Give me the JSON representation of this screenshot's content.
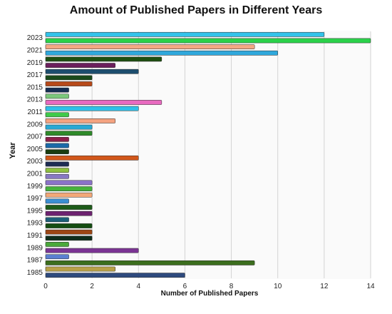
{
  "chart_data": {
    "type": "bar",
    "orientation": "horizontal",
    "title": "Amount of Published Papers in Different Years",
    "xlabel": "Number of Published Papers",
    "ylabel": "Year",
    "xlim": [
      0,
      14
    ],
    "x_ticks": [
      "0",
      "2",
      "4",
      "6",
      "8",
      "10",
      "12",
      "14"
    ],
    "y_tick_labels": [
      "1985",
      "1987",
      "1989",
      "1991",
      "1993",
      "1995",
      "1997",
      "1999",
      "2001",
      "2003",
      "2005",
      "2007",
      "2009",
      "2011",
      "2013",
      "2015",
      "2017",
      "2019",
      "2021",
      "2023"
    ],
    "grid": true,
    "legend": "none",
    "bars": [
      {
        "value": 6,
        "color": "#2e4a7e"
      },
      {
        "value": 3,
        "color": "#b8a048"
      },
      {
        "value": 9,
        "color": "#3c6e1e"
      },
      {
        "value": 1,
        "color": "#5b7fd1"
      },
      {
        "value": 4,
        "color": "#7b3494"
      },
      {
        "value": 1,
        "color": "#4aa83a"
      },
      {
        "value": 2,
        "color": "#0f2e1c"
      },
      {
        "value": 2,
        "color": "#9c4614"
      },
      {
        "value": 2,
        "color": "#154d12"
      },
      {
        "value": 1,
        "color": "#1d5f78"
      },
      {
        "value": 2,
        "color": "#6d2370"
      },
      {
        "value": 2,
        "color": "#1e5c1a"
      },
      {
        "value": 1,
        "color": "#3b8fd3"
      },
      {
        "value": 2,
        "color": "#f2a878"
      },
      {
        "value": 2,
        "color": "#46b33c"
      },
      {
        "value": 2,
        "color": "#8b73c9"
      },
      {
        "value": 1,
        "color": "#8878c2"
      },
      {
        "value": 1,
        "color": "#8fc040"
      },
      {
        "value": 1,
        "color": "#1e2d54"
      },
      {
        "value": 4,
        "color": "#d2571a"
      },
      {
        "value": 1,
        "color": "#1a3d10"
      },
      {
        "value": 1,
        "color": "#1c6aa8"
      },
      {
        "value": 1,
        "color": "#8c1f4a"
      },
      {
        "value": 2,
        "color": "#2f8a2a"
      },
      {
        "value": 2,
        "color": "#29a9d4"
      },
      {
        "value": 3,
        "color": "#f4a380"
      },
      {
        "value": 1,
        "color": "#3fca4a"
      },
      {
        "value": 4,
        "color": "#2fc0e8"
      },
      {
        "value": 5,
        "color": "#e86ac0"
      },
      {
        "value": 1,
        "color": "#7bc77b"
      },
      {
        "value": 1,
        "color": "#152e52"
      },
      {
        "value": 2,
        "color": "#b84a1a"
      },
      {
        "value": 2,
        "color": "#1a4a1a"
      },
      {
        "value": 4,
        "color": "#1d4e6e"
      },
      {
        "value": 3,
        "color": "#6b1f5c"
      },
      {
        "value": 5,
        "color": "#1e4f12"
      },
      {
        "value": 10,
        "color": "#2fa8dc"
      },
      {
        "value": 9,
        "color": "#f4a884"
      },
      {
        "value": 14,
        "color": "#2ad14a"
      },
      {
        "value": 12,
        "color": "#33c3ea"
      }
    ]
  }
}
